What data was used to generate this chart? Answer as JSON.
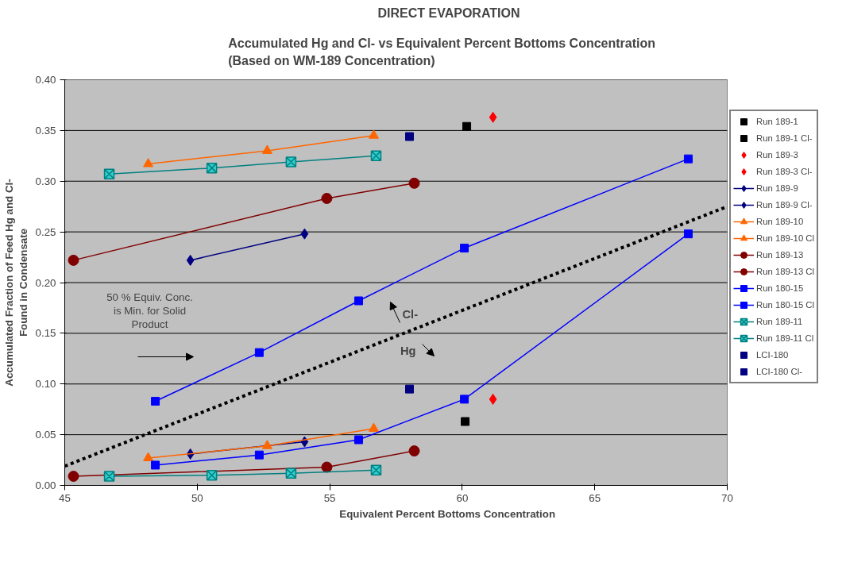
{
  "chart_data": {
    "type": "line",
    "title": "DIRECT EVAPORATION",
    "subtitle": "Accumulated Hg  and  Cl- vs  Equivalent Percent  Bottoms Concentration\n(Based on WM-189 Concentration)",
    "xlabel": "Equivalent  Percent Bottoms Concentration",
    "ylabel": "Accumulated Fraction of Feed Hg and Cl-\nFound in Condensate",
    "xlim": [
      45,
      70
    ],
    "xticks": [
      45,
      50,
      55,
      60,
      65,
      70
    ],
    "ylim": [
      0,
      0.4
    ],
    "yticks": [
      {
        "value": 0,
        "label": "0.00"
      },
      {
        "value": 0.05,
        "label": "0.05"
      },
      {
        "value": 0.1,
        "label": "0.10"
      },
      {
        "value": 0.15,
        "label": "0.15"
      },
      {
        "value": 0.2,
        "label": "0.20"
      },
      {
        "value": 0.25,
        "label": "0.25"
      },
      {
        "value": 0.3,
        "label": "0.30"
      },
      {
        "value": 0.35,
        "label": "0.35"
      },
      {
        "value": 0.4,
        "label": "0.40"
      }
    ],
    "grid": true,
    "legend": "right",
    "series": [
      {
        "name": "Run 189-1",
        "type": "scatter",
        "marker": "square",
        "color": "#000000",
        "x": [
          60.11
        ],
        "values": [
          0.063
        ]
      },
      {
        "name": "Run 189-1 Cl-",
        "type": "scatter",
        "marker": "square",
        "color": "#000000",
        "x": [
          60.17
        ],
        "values": [
          0.354
        ]
      },
      {
        "name": "Run 189-3",
        "type": "scatter",
        "marker": "diamond",
        "color": "#ff0000",
        "x": [
          61.16
        ],
        "values": [
          0.085
        ]
      },
      {
        "name": "Run 189-3 Cl-",
        "type": "scatter",
        "marker": "diamond",
        "color": "#ff0000",
        "x": [
          61.16
        ],
        "values": [
          0.363
        ]
      },
      {
        "name": "Run 189-9",
        "marker": "diamond",
        "color": "#000080",
        "x": [
          49.74,
          54.05
        ],
        "values": [
          0.031,
          0.043
        ]
      },
      {
        "name": "Run 189-9 Cl-",
        "marker": "diamond",
        "color": "#000080",
        "x": [
          49.74,
          54.05
        ],
        "values": [
          0.222,
          0.248
        ]
      },
      {
        "name": "Run 189-10",
        "marker": "triangle",
        "color": "#ff6600",
        "x": [
          48.15,
          52.64,
          56.66
        ],
        "values": [
          0.027,
          0.039,
          0.056
        ]
      },
      {
        "name": "Run 189-10 Cl",
        "marker": "triangle",
        "color": "#ff6600",
        "x": [
          48.15,
          52.64,
          56.66
        ],
        "values": [
          0.317,
          0.33,
          0.345
        ]
      },
      {
        "name": "Run 189-13",
        "marker": "circle",
        "color": "#800000",
        "x": [
          45.33,
          54.89,
          58.19
        ],
        "values": [
          0.009,
          0.018,
          0.034
        ]
      },
      {
        "name": "Run 189-13 Cl",
        "marker": "circle",
        "color": "#800000",
        "x": [
          45.33,
          54.89,
          58.19
        ],
        "values": [
          0.222,
          0.283,
          0.298
        ]
      },
      {
        "name": "Run 180-15",
        "marker": "square",
        "color": "#0000ff",
        "x": [
          48.42,
          52.34,
          56.09,
          60.08,
          68.53
        ],
        "values": [
          0.02,
          0.03,
          0.045,
          0.085,
          0.248
        ]
      },
      {
        "name": "Run 180-15 Cl",
        "marker": "square",
        "color": "#0000ff",
        "x": [
          48.42,
          52.34,
          56.09,
          60.08,
          68.53
        ],
        "values": [
          0.083,
          0.131,
          0.182,
          0.234,
          0.322
        ]
      },
      {
        "name": "Run 189-11",
        "marker": "cross",
        "color": "#008080",
        "x": [
          46.68,
          50.55,
          53.54,
          56.75
        ],
        "values": [
          0.009,
          0.01,
          0.012,
          0.015
        ]
      },
      {
        "name": "Run 189-11 Cl",
        "marker": "cross",
        "color": "#008080",
        "x": [
          46.68,
          50.55,
          53.54,
          56.75
        ],
        "values": [
          0.307,
          0.313,
          0.319,
          0.325
        ]
      },
      {
        "name": "LCI-180",
        "type": "scatter",
        "marker": "square",
        "color": "#000080",
        "x": [
          58.01
        ],
        "values": [
          0.095
        ]
      },
      {
        "name": "LCI-180 Cl-",
        "type": "scatter",
        "marker": "square",
        "color": "#000080",
        "x": [
          58.01
        ],
        "values": [
          0.344
        ]
      },
      {
        "marker": "none",
        "line_style": "dotted",
        "color": "#000000",
        "x": [
          45,
          70
        ],
        "values": [
          0.019,
          0.275
        ]
      }
    ],
    "annotations": [
      "50 % Equiv. Conc.\nis Min. for Solid\nProduct",
      "Cl-",
      "Hg"
    ]
  }
}
